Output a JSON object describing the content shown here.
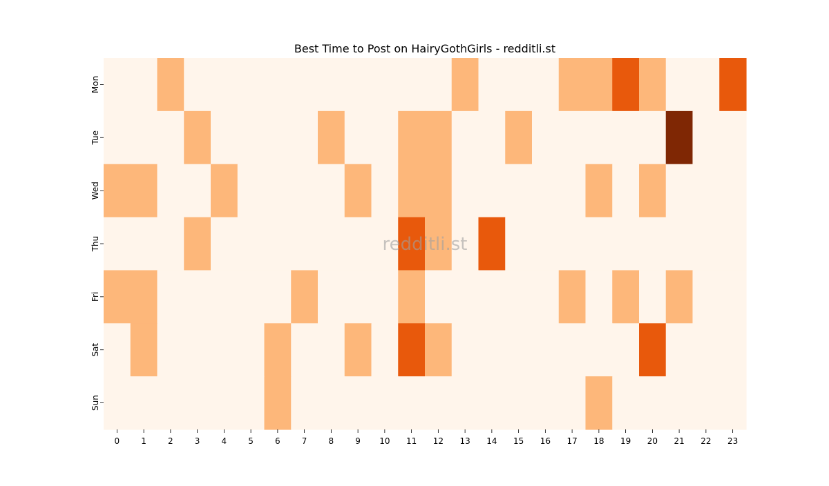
{
  "chart_data": {
    "type": "heatmap",
    "title": "Best Time to Post on HairyGothGirls - redditli.st",
    "watermark": "redditli.st",
    "xlabel": "",
    "ylabel": "",
    "x_categories": [
      "0",
      "1",
      "2",
      "3",
      "4",
      "5",
      "6",
      "7",
      "8",
      "9",
      "10",
      "11",
      "12",
      "13",
      "14",
      "15",
      "16",
      "17",
      "18",
      "19",
      "20",
      "21",
      "22",
      "23"
    ],
    "y_categories": [
      "Mon",
      "Tue",
      "Wed",
      "Thu",
      "Fri",
      "Sat",
      "Sun"
    ],
    "values": [
      [
        0,
        0,
        1,
        0,
        0,
        0,
        0,
        0,
        0,
        0,
        0,
        0,
        0,
        1,
        0,
        0,
        0,
        1,
        1,
        2,
        1,
        0,
        0,
        2
      ],
      [
        0,
        0,
        0,
        1,
        0,
        0,
        0,
        0,
        1,
        0,
        0,
        1,
        1,
        0,
        0,
        1,
        0,
        0,
        0,
        0,
        0,
        3,
        0,
        0
      ],
      [
        1,
        1,
        0,
        0,
        1,
        0,
        0,
        0,
        0,
        1,
        0,
        1,
        1,
        0,
        0,
        0,
        0,
        0,
        1,
        0,
        1,
        0,
        0,
        0
      ],
      [
        0,
        0,
        0,
        1,
        0,
        0,
        0,
        0,
        0,
        0,
        0,
        2,
        1,
        0,
        2,
        0,
        0,
        0,
        0,
        0,
        0,
        0,
        0,
        0
      ],
      [
        1,
        1,
        0,
        0,
        0,
        0,
        0,
        1,
        0,
        0,
        0,
        1,
        0,
        0,
        0,
        0,
        0,
        1,
        0,
        1,
        0,
        1,
        0,
        0
      ],
      [
        0,
        1,
        0,
        0,
        0,
        0,
        1,
        0,
        0,
        1,
        0,
        2,
        1,
        0,
        0,
        0,
        0,
        0,
        0,
        0,
        2,
        0,
        0,
        0
      ],
      [
        0,
        0,
        0,
        0,
        0,
        0,
        1,
        0,
        0,
        0,
        0,
        0,
        0,
        0,
        0,
        0,
        0,
        0,
        1,
        0,
        0,
        0,
        0,
        0
      ]
    ],
    "value_range": [
      0,
      3
    ],
    "colormap": "Oranges",
    "level_colors": [
      "#fff5eb",
      "#fdb77a",
      "#e8590c",
      "#7f2704"
    ],
    "grid": false,
    "legend": "none"
  }
}
